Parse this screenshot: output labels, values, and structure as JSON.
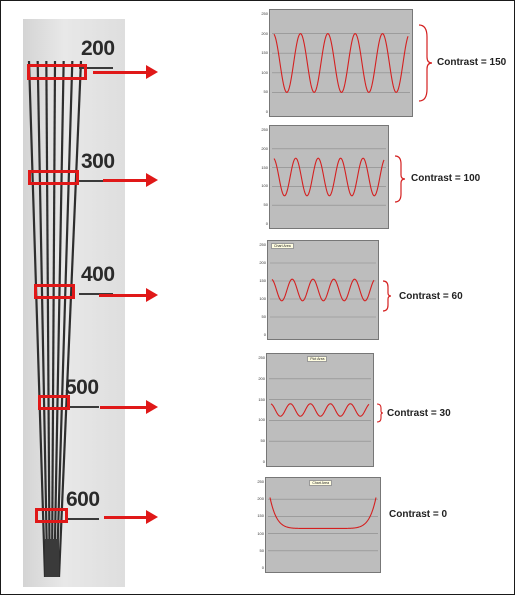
{
  "figure": {
    "resolution_labels": [
      "200",
      "300",
      "400",
      "500",
      "600"
    ],
    "panels": [
      {
        "contrast_label": "Contrast = 150",
        "contrast_value": 150,
        "chart_tag": "",
        "yticks": [
          "250",
          "200",
          "150",
          "100",
          "50",
          "0"
        ],
        "waveform": {
          "cycles": 5,
          "mean": 125,
          "amplitude": 75
        }
      },
      {
        "contrast_label": "Contrast  = 100",
        "contrast_value": 100,
        "chart_tag": "",
        "yticks": [
          "250",
          "200",
          "150",
          "100",
          "50",
          "0"
        ],
        "waveform": {
          "cycles": 5,
          "mean": 125,
          "amplitude": 50
        }
      },
      {
        "contrast_label": "Contrast = 60",
        "contrast_value": 60,
        "chart_tag": "Chart Area",
        "yticks": [
          "250",
          "200",
          "150",
          "100",
          "50",
          "0"
        ],
        "waveform": {
          "cycles": 5,
          "mean": 125,
          "amplitude": 30
        }
      },
      {
        "contrast_label": "Contrast  = 30",
        "contrast_value": 30,
        "chart_tag": "Plot Area",
        "yticks": [
          "250",
          "200",
          "150",
          "100",
          "50",
          "0"
        ],
        "waveform": {
          "cycles": 5,
          "mean": 125,
          "amplitude": 15
        }
      },
      {
        "contrast_label": "Contrast  = 0",
        "contrast_value": 0,
        "chart_tag": "Chart Area",
        "yticks": [
          "250",
          "200",
          "150",
          "100",
          "50",
          "0"
        ],
        "waveform": {
          "cycles": 0,
          "mean": 115,
          "amplitude": 0
        }
      }
    ],
    "colors": {
      "highlight": "#e01818",
      "plot_bg": "#bdbdbd",
      "curve": "#d42020"
    }
  }
}
